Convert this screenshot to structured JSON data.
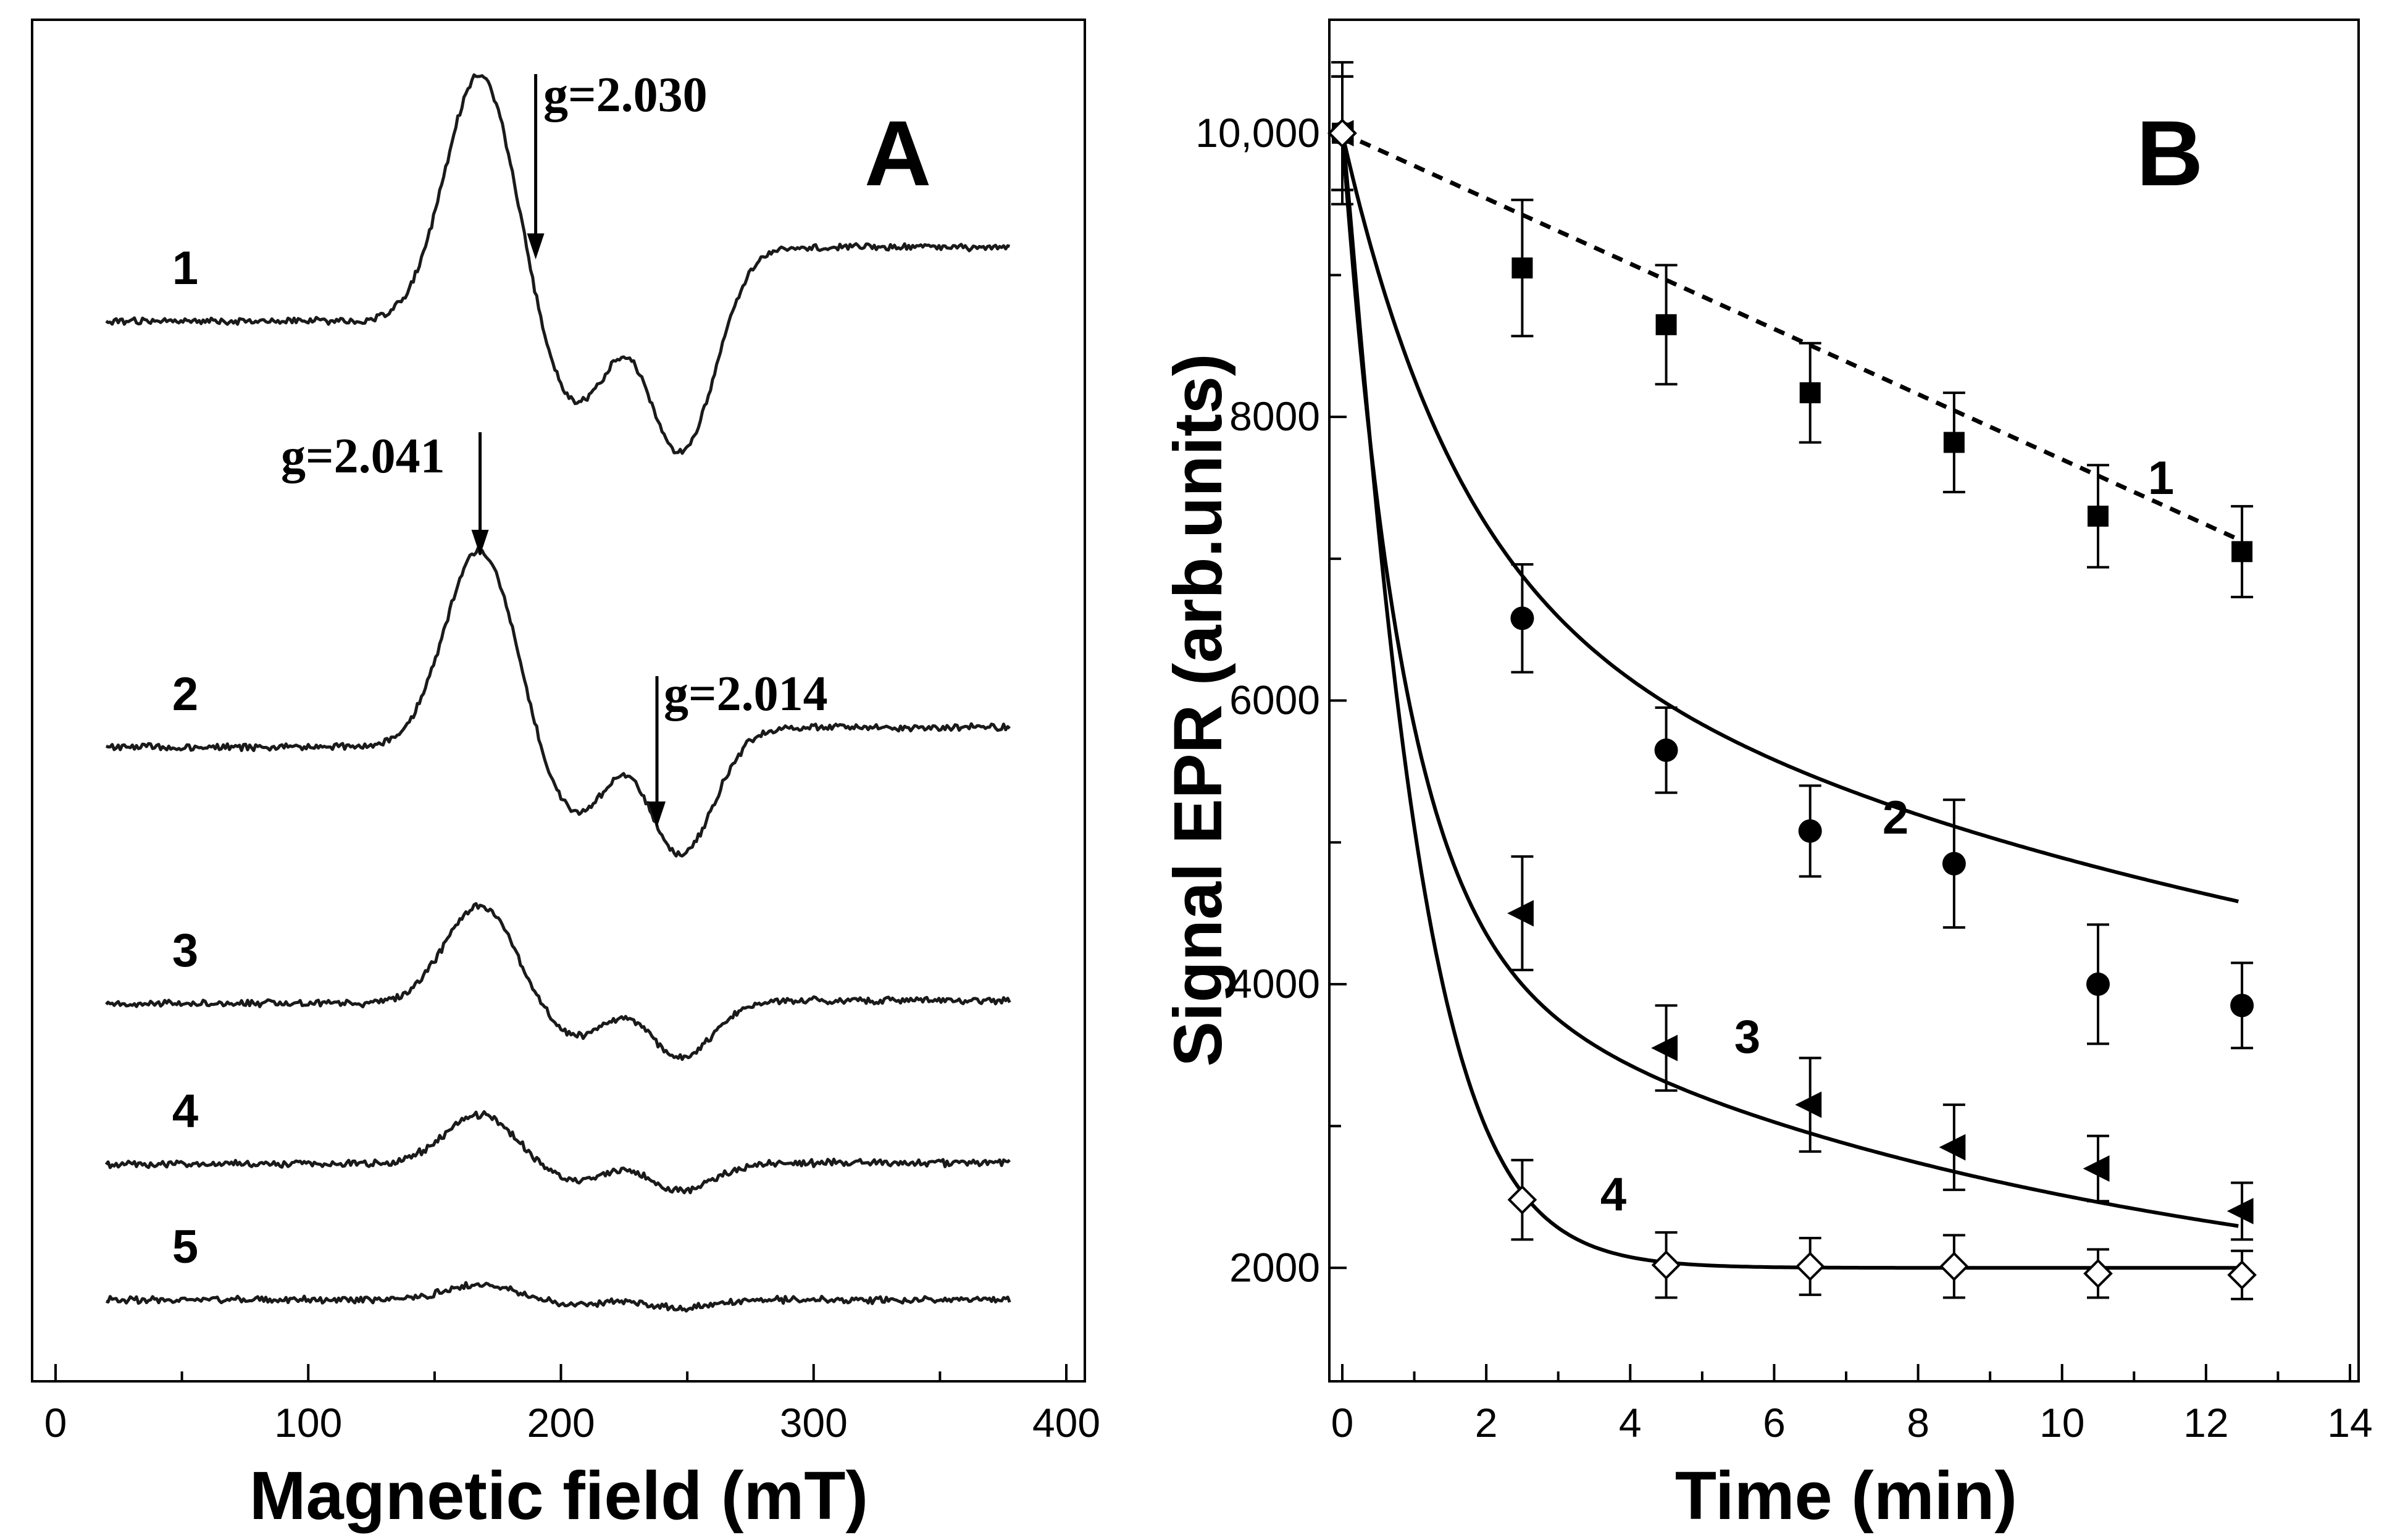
{
  "chart_data": [
    {
      "panel": "A",
      "type": "line",
      "xlabel": "Magnetic field (mT)",
      "ylabel": "",
      "xlim": [
        0,
        400
      ],
      "xticks": [
        0,
        100,
        200,
        300,
        400
      ],
      "series": [
        {
          "name": "1",
          "baseline": 0,
          "amplitude": 1.0,
          "tail": 0.3
        },
        {
          "name": "2",
          "baseline": 0,
          "amplitude": 0.8,
          "tail": 0.1
        },
        {
          "name": "3",
          "baseline": 0,
          "amplitude": 0.4,
          "tail": 0.03
        },
        {
          "name": "4",
          "baseline": 0,
          "amplitude": 0.2,
          "tail": 0.02
        },
        {
          "name": "5",
          "baseline": 0,
          "amplitude": 0.06,
          "tail": 0.0
        }
      ],
      "annotations": [
        {
          "text": "g=2.030",
          "x": 190,
          "trace": "1"
        },
        {
          "text": "g=2.041",
          "x": 168,
          "trace": "2"
        },
        {
          "text": "g=2.014",
          "x": 238,
          "trace": "2"
        }
      ],
      "grid": false
    },
    {
      "panel": "B",
      "type": "line",
      "xlabel": "Time (min)",
      "ylabel": "Signal EPR (arb.units)",
      "xlim": [
        0,
        14
      ],
      "ylim": [
        1200,
        10800
      ],
      "xticks": [
        0,
        2,
        4,
        6,
        8,
        10,
        12,
        14
      ],
      "yticks": [
        2000,
        4000,
        6000,
        8000,
        10000
      ],
      "ytick_labels": [
        "2000",
        "4000",
        "6000",
        "8000",
        "10,000"
      ],
      "series": [
        {
          "name": "1",
          "marker": "square-filled",
          "line": "dashed",
          "x": [
            0,
            2.5,
            4.5,
            6.5,
            8.5,
            10.5,
            12.5
          ],
          "y": [
            10000,
            9050,
            8650,
            8170,
            7820,
            7300,
            7050
          ],
          "err": [
            500,
            480,
            420,
            350,
            350,
            360,
            320
          ]
        },
        {
          "name": "2",
          "marker": "circle-filled",
          "line": "solid",
          "x": [
            0,
            2.5,
            4.5,
            6.5,
            8.5,
            10.5,
            12.5
          ],
          "y": [
            10000,
            6580,
            5650,
            5080,
            4850,
            4000,
            3850
          ],
          "err": [
            400,
            380,
            300,
            320,
            450,
            420,
            300
          ]
        },
        {
          "name": "3",
          "marker": "triangle-left",
          "line": "solid",
          "x": [
            0,
            2.5,
            4.5,
            6.5,
            8.5,
            10.5,
            12.5
          ],
          "y": [
            10000,
            4500,
            3550,
            3150,
            2850,
            2700,
            2400
          ],
          "err": [
            400,
            400,
            300,
            330,
            300,
            230,
            200
          ]
        },
        {
          "name": "4",
          "marker": "diamond-open",
          "line": "solid",
          "x": [
            0,
            2.5,
            4.5,
            6.5,
            8.5,
            10.5,
            12.5
          ],
          "y": [
            10000,
            2480,
            2020,
            2010,
            2010,
            1960,
            1950
          ],
          "err": [
            400,
            280,
            230,
            200,
            220,
            170,
            170
          ]
        }
      ],
      "grid": false
    }
  ]
}
